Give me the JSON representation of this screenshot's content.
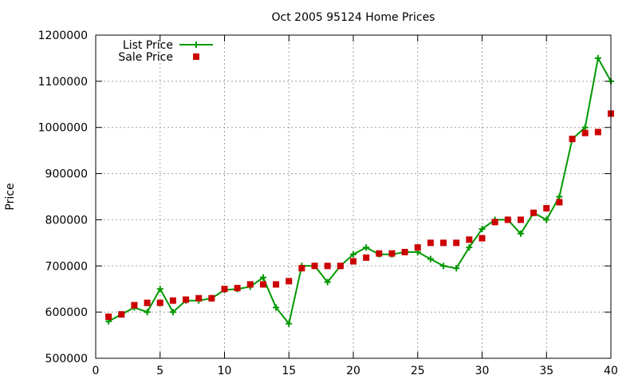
{
  "chart_data": {
    "type": "line",
    "title": "Oct 2005 95124 Home Prices",
    "xlabel": "",
    "ylabel": "Price",
    "xlim": [
      0,
      40
    ],
    "ylim": [
      500000,
      1200000
    ],
    "x_ticks": [
      0,
      5,
      10,
      15,
      20,
      25,
      30,
      35,
      40
    ],
    "y_ticks": [
      500000,
      600000,
      700000,
      800000,
      900000,
      1000000,
      1100000,
      1200000
    ],
    "grid": true,
    "legend_position": "top-left",
    "x": [
      1,
      2,
      3,
      4,
      5,
      6,
      7,
      8,
      9,
      10,
      11,
      12,
      13,
      14,
      15,
      16,
      17,
      18,
      19,
      20,
      21,
      22,
      23,
      24,
      25,
      26,
      27,
      28,
      29,
      30,
      31,
      32,
      33,
      34,
      35,
      36,
      37,
      38,
      39,
      40
    ],
    "series": [
      {
        "name": "List Price",
        "style": "line-with-plus-markers",
        "color": "#009900",
        "values": [
          580000,
          595000,
          610000,
          600000,
          650000,
          600000,
          625000,
          625000,
          630000,
          648000,
          650000,
          655000,
          675000,
          610000,
          575000,
          700000,
          700000,
          665000,
          700000,
          725000,
          740000,
          725000,
          725000,
          730000,
          730000,
          715000,
          700000,
          695000,
          740000,
          780000,
          800000,
          800000,
          770000,
          815000,
          800000,
          850000,
          975000,
          1000000,
          1150000,
          1100000
        ]
      },
      {
        "name": "Sale Price",
        "style": "square-markers",
        "color": "#cc0000",
        "values": [
          590000,
          595000,
          615000,
          620000,
          620000,
          625000,
          627000,
          630000,
          630000,
          650000,
          652000,
          660000,
          660000,
          660000,
          667000,
          695000,
          700000,
          700000,
          700000,
          710000,
          718000,
          727000,
          727000,
          730000,
          740000,
          750000,
          750000,
          750000,
          757000,
          760000,
          795000,
          800000,
          800000,
          815000,
          825000,
          838000,
          975000,
          988000,
          990000,
          1030000
        ]
      }
    ]
  }
}
